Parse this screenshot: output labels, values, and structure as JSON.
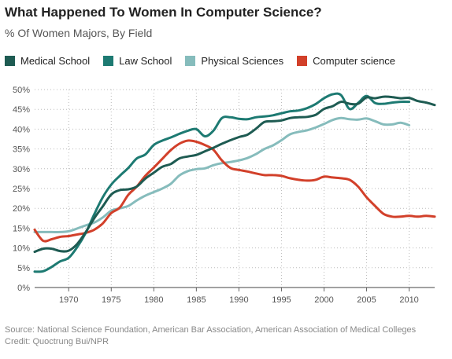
{
  "title": "What Happened To Women In Computer Science?",
  "subtitle": "% Of Women Majors, By Field",
  "colors": {
    "medical": "#1e5b52",
    "law": "#1d7a72",
    "physical": "#86bcbc",
    "cs": "#d2402a"
  },
  "legend": [
    {
      "label": "Medical School",
      "color": "#1e5b52"
    },
    {
      "label": "Law School",
      "color": "#1d7a72"
    },
    {
      "label": "Physical Sciences",
      "color": "#86bcbc"
    },
    {
      "label": "Computer science",
      "color": "#d2402a"
    }
  ],
  "footer": {
    "source": "Source: National Science Foundation, American Bar Association, American Association of Medical Colleges",
    "credit": "Credit: Quoctrung Bui/NPR"
  },
  "chart_data": {
    "type": "line",
    "xlim": [
      1966,
      2013
    ],
    "ylim": [
      0,
      50
    ],
    "xticks": [
      1970,
      1975,
      1980,
      1985,
      1990,
      1995,
      2000,
      2005,
      2010
    ],
    "yticks": [
      0,
      5,
      10,
      15,
      20,
      25,
      30,
      35,
      40,
      45,
      50
    ],
    "ytick_labels": [
      "0%",
      "5%",
      "10%",
      "15%",
      "20%",
      "25%",
      "30%",
      "35%",
      "40%",
      "45%",
      "50%"
    ],
    "grid": true,
    "legend_position": "top",
    "series": [
      {
        "name": "Medical School",
        "color": "#1e5b52",
        "x": [
          1966,
          1967,
          1968,
          1969,
          1970,
          1971,
          1972,
          1973,
          1974,
          1975,
          1976,
          1977,
          1978,
          1979,
          1980,
          1981,
          1982,
          1983,
          1984,
          1985,
          1986,
          1987,
          1988,
          1989,
          1990,
          1991,
          1992,
          1993,
          1994,
          1995,
          1996,
          1997,
          1998,
          1999,
          2000,
          2001,
          2002,
          2003,
          2004,
          2005,
          2006,
          2007,
          2008,
          2009,
          2010,
          2011,
          2012,
          2013
        ],
        "y": [
          9,
          9.8,
          9.8,
          9.2,
          9.3,
          11,
          14,
          17.5,
          20.5,
          23.5,
          24.6,
          24.8,
          25.5,
          27.5,
          29,
          30.5,
          31.2,
          32.6,
          33.1,
          33.5,
          34.4,
          35.3,
          36.3,
          37.2,
          38,
          38.6,
          40.1,
          41.8,
          42,
          42.2,
          42.8,
          43,
          43.1,
          43.6,
          45.1,
          45.8,
          46.9,
          46.4,
          46.4,
          48,
          47.8,
          48.2,
          48.1,
          47.8,
          47.9,
          47.1,
          46.7,
          46.1
        ]
      },
      {
        "name": "Law School",
        "color": "#1d7a72",
        "x": [
          1966,
          1967,
          1968,
          1969,
          1970,
          1971,
          1972,
          1973,
          1974,
          1975,
          1976,
          1977,
          1978,
          1979,
          1980,
          1981,
          1982,
          1983,
          1984,
          1985,
          1986,
          1987,
          1988,
          1989,
          1990,
          1991,
          1992,
          1993,
          1994,
          1995,
          1996,
          1997,
          1998,
          1999,
          2000,
          2001,
          2002,
          2003,
          2004,
          2005,
          2006,
          2007,
          2008,
          2009,
          2010
        ],
        "y": [
          4,
          4.1,
          5.2,
          6.6,
          7.5,
          10.2,
          13.8,
          18.5,
          22.8,
          26,
          28.2,
          30.2,
          32.6,
          33.6,
          36,
          37.1,
          37.9,
          38.8,
          39.6,
          40,
          38.2,
          39.6,
          42.8,
          43,
          42.6,
          42.5,
          43,
          43.2,
          43.5,
          44,
          44.5,
          44.7,
          45.3,
          46.3,
          47.8,
          48.8,
          48.6,
          45.1,
          46.6,
          48.4,
          46.6,
          46.4,
          46.7,
          46.9,
          46.9
        ]
      },
      {
        "name": "Physical Sciences",
        "color": "#86bcbc",
        "x": [
          1966,
          1967,
          1968,
          1969,
          1970,
          1971,
          1972,
          1973,
          1974,
          1975,
          1976,
          1977,
          1978,
          1979,
          1980,
          1981,
          1982,
          1983,
          1984,
          1985,
          1986,
          1987,
          1988,
          1989,
          1990,
          1991,
          1992,
          1993,
          1994,
          1995,
          1996,
          1997,
          1998,
          1999,
          2000,
          2001,
          2002,
          2003,
          2004,
          2005,
          2006,
          2007,
          2008,
          2009,
          2010
        ],
        "y": [
          14,
          14,
          14,
          14,
          14.2,
          14.9,
          15.7,
          16.4,
          17.7,
          19.4,
          20,
          20.6,
          22,
          23.2,
          24.1,
          25,
          26.2,
          28.3,
          29.4,
          29.9,
          30.1,
          30.9,
          31.4,
          31.7,
          32.1,
          32.7,
          33.7,
          35,
          35.9,
          37.2,
          38.7,
          39.3,
          39.7,
          40.4,
          41.3,
          42.3,
          42.8,
          42.5,
          42.4,
          42.7,
          42,
          41.2,
          41.2,
          41.6,
          41
        ]
      },
      {
        "name": "Computer science",
        "color": "#d2402a",
        "x": [
          1966,
          1967,
          1968,
          1969,
          1970,
          1971,
          1972,
          1973,
          1974,
          1975,
          1976,
          1977,
          1978,
          1979,
          1980,
          1981,
          1982,
          1983,
          1984,
          1985,
          1986,
          1987,
          1988,
          1989,
          1990,
          1991,
          1992,
          1993,
          1994,
          1995,
          1996,
          1997,
          1998,
          1999,
          2000,
          2001,
          2002,
          2003,
          2004,
          2005,
          2006,
          2007,
          2008,
          2009,
          2010,
          2011,
          2012,
          2013
        ],
        "y": [
          14.6,
          11.8,
          12.2,
          12.8,
          13,
          13.4,
          13.8,
          14.6,
          16.2,
          18.8,
          20.2,
          23.4,
          25.5,
          28.2,
          30.3,
          32.5,
          34.7,
          36.3,
          37.1,
          36.8,
          36,
          34.8,
          32.1,
          30.2,
          29.7,
          29.3,
          28.8,
          28.4,
          28.4,
          28.2,
          27.6,
          27.2,
          27,
          27.2,
          28,
          27.8,
          27.6,
          27.2,
          25.5,
          22.8,
          20.6,
          18.6,
          17.9,
          17.9,
          18.1,
          17.9,
          18.1,
          17.9
        ]
      }
    ]
  }
}
